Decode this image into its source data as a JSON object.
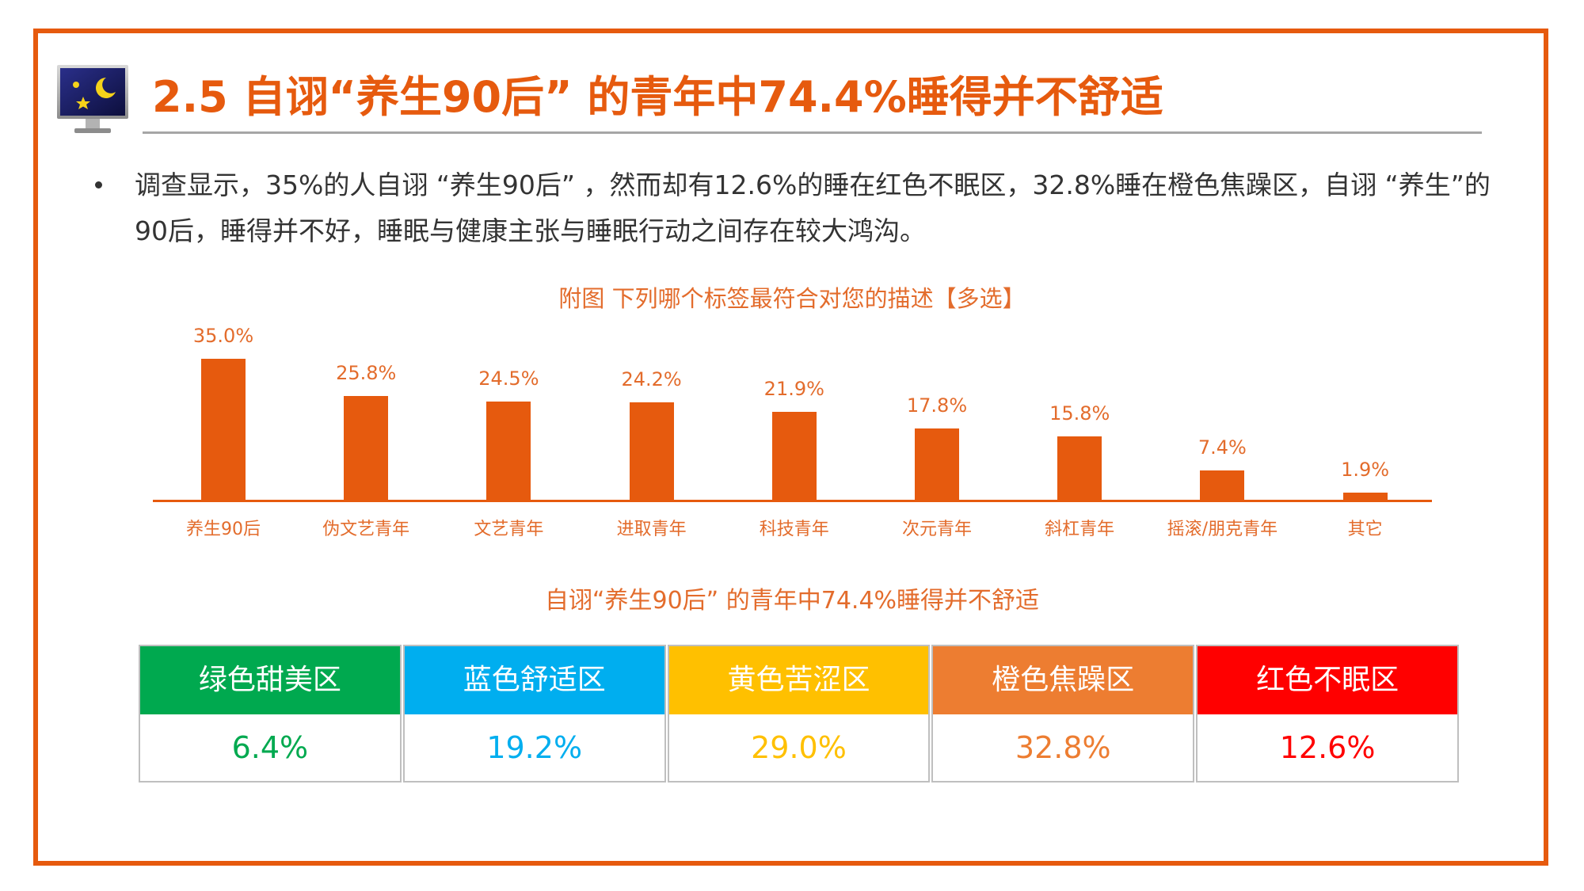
{
  "header": {
    "section_number": "2.5",
    "title": "2.5 自诩“养生90后” 的青年中74.4%睡得并不舒适",
    "icon": "monitor-night-icon"
  },
  "body": {
    "bullet_text": "调查显示，35%的人自诩 “养生90后” ，然而却有12.6%的睡在红色不眠区，32.8%睡在橙色焦躁区，自诩 “养生”的90后，睡得并不好，睡眠与健康主张与睡眠行动之间存在较大鸿沟。"
  },
  "chart_data": {
    "type": "bar",
    "title": "附图  下列哪个标签最符合对您的描述【多选】",
    "categories": [
      "养生90后",
      "伪文艺青年",
      "文艺青年",
      "进取青年",
      "科技青年",
      "次元青年",
      "斜杠青年",
      "摇滚/朋克青年",
      "其它"
    ],
    "values": [
      35.0,
      25.8,
      24.5,
      24.2,
      21.9,
      17.8,
      15.8,
      7.4,
      1.9
    ],
    "value_labels": [
      "35.0%",
      "25.8%",
      "24.5%",
      "24.2%",
      "21.9%",
      "17.8%",
      "15.8%",
      "7.4%",
      "1.9%"
    ],
    "xlabel": "",
    "ylabel": "",
    "ylim": [
      0,
      40
    ],
    "grid": false,
    "legend": "none",
    "bar_color": "#e65a0e",
    "unit": "%"
  },
  "summary": {
    "subtitle": "自诩“养生90后” 的青年中74.4%睡得并不舒适",
    "zones": [
      {
        "label": "绿色甜美区",
        "value": "6.4%",
        "color": "#00a94f"
      },
      {
        "label": "蓝色舒适区",
        "value": "19.2%",
        "color": "#00aeef"
      },
      {
        "label": "黄色苦涩区",
        "value": "29.0%",
        "color": "#ffc000"
      },
      {
        "label": "橙色焦躁区",
        "value": "32.8%",
        "color": "#ed7d31"
      },
      {
        "label": "红色不眠区",
        "value": "12.6%",
        "color": "#ff0000"
      }
    ]
  },
  "colors": {
    "accent": "#e65a0e",
    "text": "#333333",
    "rule": "#a6a6a6"
  }
}
